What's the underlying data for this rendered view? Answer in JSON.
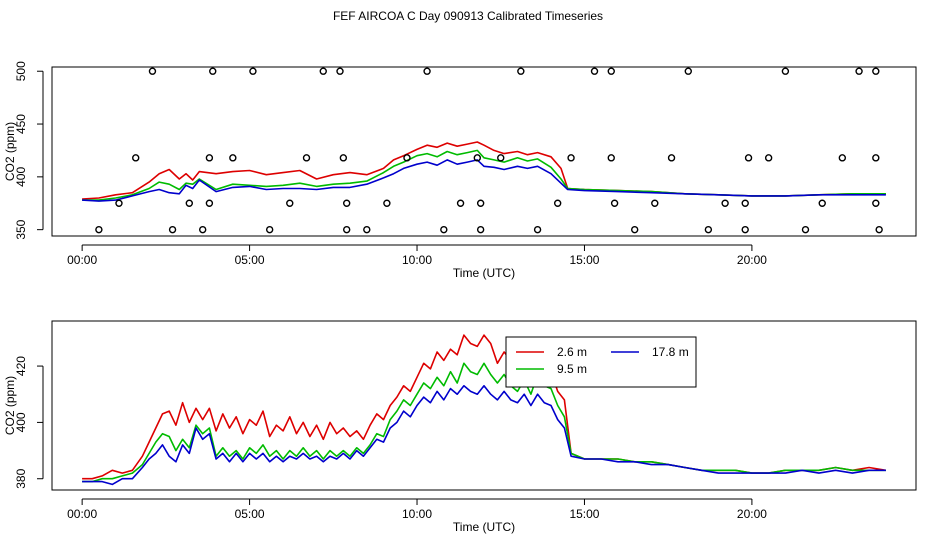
{
  "title": "FEF AIRCOA C  Day 090913  Calibrated Timeseries",
  "colors": {
    "red": "#dd0000",
    "green": "#00bb00",
    "blue": "#0000cc",
    "axis": "#000000"
  },
  "chart_data": [
    {
      "type": "line",
      "title": "",
      "xlabel": "Time (UTC)",
      "ylabel": "CO2 (ppm)",
      "xlim": [
        -0.9,
        24.9
      ],
      "ylim": [
        344,
        504
      ],
      "xticks": [
        0,
        5,
        10,
        15,
        20
      ],
      "xtick_labels": [
        "00:00",
        "05:00",
        "10:00",
        "15:00",
        "20:00"
      ],
      "yticks": [
        350,
        400,
        450,
        500
      ],
      "ytick_labels": [
        "350",
        "400",
        "450",
        "500"
      ],
      "series": [
        {
          "name": "2.6 m",
          "color": "#dd0000",
          "x": [
            0,
            0.5,
            1,
            1.5,
            2,
            2.3,
            2.6,
            2.9,
            3.1,
            3.3,
            3.5,
            4,
            4.5,
            5,
            5.5,
            6,
            6.5,
            7,
            7.5,
            8,
            8.5,
            9,
            9.3,
            9.6,
            10,
            10.3,
            10.6,
            10.9,
            11.2,
            11.5,
            11.8,
            12,
            12.3,
            12.6,
            13,
            13.3,
            13.6,
            14,
            14.3,
            14.5,
            15,
            16,
            17,
            18,
            19,
            20,
            21,
            22,
            23,
            24
          ],
          "y": [
            379,
            380,
            383,
            385,
            395,
            403,
            407,
            398,
            403,
            397,
            405,
            403,
            405,
            406,
            402,
            404,
            406,
            398,
            402,
            404,
            402,
            408,
            416,
            420,
            426,
            430,
            428,
            432,
            429,
            431,
            433,
            430,
            425,
            422,
            424,
            421,
            423,
            419,
            408,
            389,
            388,
            387,
            386,
            384,
            383,
            382,
            382,
            383,
            384,
            384
          ]
        },
        {
          "name": "9.5 m",
          "color": "#00bb00",
          "x": [
            0,
            0.5,
            1,
            1.5,
            2,
            2.3,
            2.6,
            2.9,
            3.1,
            3.3,
            3.5,
            4,
            4.5,
            5,
            5.5,
            6,
            6.5,
            7,
            7.5,
            8,
            8.5,
            9,
            9.3,
            9.6,
            10,
            10.3,
            10.6,
            10.9,
            11.2,
            11.5,
            11.8,
            12,
            12.3,
            12.6,
            13,
            13.3,
            13.6,
            14,
            14.3,
            14.5,
            15,
            16,
            17,
            18,
            19,
            20,
            21,
            22,
            23,
            24
          ],
          "y": [
            378,
            378,
            380,
            383,
            389,
            395,
            393,
            388,
            394,
            393,
            398,
            388,
            393,
            392,
            391,
            392,
            394,
            391,
            393,
            394,
            396,
            404,
            410,
            414,
            420,
            422,
            419,
            424,
            421,
            423,
            425,
            418,
            416,
            414,
            418,
            415,
            417,
            409,
            398,
            389,
            388,
            387,
            386,
            384,
            383,
            382,
            382,
            383,
            384,
            384
          ]
        },
        {
          "name": "17.8 m",
          "color": "#0000cc",
          "x": [
            0,
            0.5,
            1,
            1.5,
            2,
            2.3,
            2.6,
            2.9,
            3.1,
            3.3,
            3.5,
            4,
            4.5,
            5,
            5.5,
            6,
            6.5,
            7,
            7.5,
            8,
            8.5,
            9,
            9.3,
            9.6,
            10,
            10.3,
            10.6,
            10.9,
            11.2,
            11.5,
            11.8,
            12,
            12.3,
            12.6,
            13,
            13.3,
            13.6,
            14,
            14.3,
            14.5,
            15,
            16,
            17,
            18,
            19,
            20,
            21,
            22,
            23,
            24
          ],
          "y": [
            378,
            377,
            378,
            382,
            386,
            388,
            385,
            384,
            392,
            389,
            397,
            386,
            390,
            391,
            388,
            389,
            389,
            388,
            390,
            390,
            393,
            399,
            403,
            408,
            412,
            414,
            411,
            416,
            412,
            414,
            416,
            410,
            409,
            407,
            410,
            408,
            410,
            403,
            394,
            388,
            387,
            386,
            385,
            384,
            383,
            382,
            382,
            383,
            383,
            383
          ]
        }
      ],
      "points": {
        "x": [
          0.5,
          1.1,
          1.6,
          2.1,
          2.7,
          3.2,
          3.6,
          3.8,
          3.8,
          3.9,
          4.5,
          5.1,
          5.6,
          6.2,
          6.7,
          7.2,
          7.7,
          7.8,
          7.9,
          7.9,
          8.5,
          9.1,
          9.7,
          10.3,
          10.8,
          11.3,
          11.8,
          11.9,
          11.9,
          12.5,
          13.1,
          13.6,
          14.2,
          14.6,
          15.3,
          15.8,
          15.8,
          15.9,
          16.5,
          17.1,
          17.6,
          18.1,
          18.7,
          19.2,
          19.8,
          19.8,
          19.9,
          20.5,
          21.0,
          21.6,
          22.1,
          22.7,
          23.2,
          23.7,
          23.7,
          23.7,
          23.8
        ],
        "y": [
          350,
          375,
          418,
          500,
          350,
          375,
          350,
          375,
          418,
          500,
          418,
          500,
          350,
          375,
          418,
          500,
          500,
          418,
          375,
          350,
          350,
          375,
          418,
          500,
          350,
          375,
          418,
          375,
          350,
          418,
          500,
          350,
          375,
          418,
          500,
          500,
          418,
          375,
          350,
          375,
          418,
          500,
          350,
          375,
          375,
          350,
          418,
          418,
          500,
          350,
          375,
          418,
          500,
          500,
          418,
          375,
          350
        ]
      }
    },
    {
      "type": "line",
      "title": "",
      "xlabel": "Time (UTC)",
      "ylabel": "CO2 (ppm)",
      "xlim": [
        -0.9,
        24.9
      ],
      "ylim": [
        376,
        436
      ],
      "xticks": [
        0,
        5,
        10,
        15,
        20
      ],
      "xtick_labels": [
        "00:00",
        "05:00",
        "10:00",
        "15:00",
        "20:00"
      ],
      "yticks": [
        380,
        400,
        420
      ],
      "ytick_labels": [
        "380",
        "400",
        "420"
      ],
      "legend": {
        "placement": "top-center",
        "entries": [
          "2.6 m",
          "9.5 m",
          "17.8 m"
        ]
      },
      "series": [
        {
          "name": "2.6 m",
          "color": "#dd0000",
          "x": [
            0,
            0.3,
            0.6,
            0.9,
            1.2,
            1.5,
            1.8,
            2.0,
            2.2,
            2.4,
            2.6,
            2.8,
            3.0,
            3.2,
            3.4,
            3.6,
            3.8,
            4.0,
            4.2,
            4.4,
            4.6,
            4.8,
            5.0,
            5.2,
            5.4,
            5.6,
            5.8,
            6.0,
            6.2,
            6.4,
            6.6,
            6.8,
            7.0,
            7.2,
            7.4,
            7.6,
            7.8,
            8.0,
            8.2,
            8.4,
            8.6,
            8.8,
            9.0,
            9.2,
            9.4,
            9.6,
            9.8,
            10.0,
            10.2,
            10.4,
            10.6,
            10.8,
            11.0,
            11.2,
            11.4,
            11.6,
            11.8,
            12.0,
            12.2,
            12.4,
            12.6,
            12.8,
            13.0,
            13.2,
            13.4,
            13.6,
            13.8,
            14.0,
            14.2,
            14.4,
            14.6,
            15.0,
            15.5,
            16,
            16.5,
            17,
            17.5,
            18,
            18.5,
            19,
            19.5,
            20,
            20.5,
            21,
            21.5,
            22,
            22.5,
            23,
            23.5,
            24
          ],
          "y": [
            380,
            380,
            381,
            383,
            382,
            383,
            388,
            393,
            398,
            403,
            404,
            399,
            407,
            400,
            405,
            401,
            405,
            397,
            403,
            398,
            402,
            396,
            401,
            399,
            404,
            395,
            399,
            397,
            402,
            396,
            400,
            395,
            399,
            394,
            400,
            396,
            398,
            395,
            397,
            394,
            399,
            403,
            401,
            406,
            409,
            413,
            411,
            416,
            421,
            419,
            425,
            422,
            426,
            424,
            431,
            428,
            427,
            431,
            428,
            421,
            425,
            422,
            419,
            423,
            420,
            421,
            419,
            418,
            411,
            408,
            389,
            387,
            387,
            387,
            386,
            386,
            385,
            384,
            383,
            383,
            383,
            382,
            382,
            383,
            383,
            383,
            384,
            383,
            384,
            383
          ]
        },
        {
          "name": "9.5 m",
          "color": "#00bb00",
          "x": [
            0,
            0.3,
            0.6,
            0.9,
            1.2,
            1.5,
            1.8,
            2.0,
            2.2,
            2.4,
            2.6,
            2.8,
            3.0,
            3.2,
            3.4,
            3.6,
            3.8,
            4.0,
            4.2,
            4.4,
            4.6,
            4.8,
            5.0,
            5.2,
            5.4,
            5.6,
            5.8,
            6.0,
            6.2,
            6.4,
            6.6,
            6.8,
            7.0,
            7.2,
            7.4,
            7.6,
            7.8,
            8.0,
            8.2,
            8.4,
            8.6,
            8.8,
            9.0,
            9.2,
            9.4,
            9.6,
            9.8,
            10.0,
            10.2,
            10.4,
            10.6,
            10.8,
            11.0,
            11.2,
            11.4,
            11.6,
            11.8,
            12.0,
            12.2,
            12.4,
            12.6,
            12.8,
            13.0,
            13.2,
            13.4,
            13.6,
            13.8,
            14.0,
            14.2,
            14.4,
            14.6,
            15.0,
            15.5,
            16,
            16.5,
            17,
            17.5,
            18,
            18.5,
            19,
            19.5,
            20,
            20.5,
            21,
            21.5,
            22,
            22.5,
            23,
            23.5,
            24
          ],
          "y": [
            379,
            379,
            380,
            380,
            381,
            382,
            385,
            389,
            393,
            396,
            395,
            390,
            394,
            391,
            399,
            396,
            398,
            388,
            391,
            388,
            390,
            387,
            391,
            389,
            392,
            388,
            390,
            387,
            390,
            388,
            391,
            388,
            390,
            387,
            390,
            388,
            390,
            388,
            391,
            389,
            392,
            396,
            395,
            401,
            404,
            408,
            406,
            410,
            414,
            412,
            416,
            413,
            418,
            414,
            421,
            418,
            417,
            421,
            417,
            414,
            417,
            413,
            411,
            415,
            410,
            417,
            413,
            412,
            406,
            402,
            389,
            387,
            387,
            387,
            386,
            386,
            385,
            384,
            383,
            383,
            383,
            382,
            382,
            383,
            383,
            383,
            384,
            383,
            383,
            383
          ]
        },
        {
          "name": "17.8 m",
          "color": "#0000cc",
          "x": [
            0,
            0.3,
            0.6,
            0.9,
            1.2,
            1.5,
            1.8,
            2.0,
            2.2,
            2.4,
            2.6,
            2.8,
            3.0,
            3.2,
            3.4,
            3.6,
            3.8,
            4.0,
            4.2,
            4.4,
            4.6,
            4.8,
            5.0,
            5.2,
            5.4,
            5.6,
            5.8,
            6.0,
            6.2,
            6.4,
            6.6,
            6.8,
            7.0,
            7.2,
            7.4,
            7.6,
            7.8,
            8.0,
            8.2,
            8.4,
            8.6,
            8.8,
            9.0,
            9.2,
            9.4,
            9.6,
            9.8,
            10.0,
            10.2,
            10.4,
            10.6,
            10.8,
            11.0,
            11.2,
            11.4,
            11.6,
            11.8,
            12.0,
            12.2,
            12.4,
            12.6,
            12.8,
            13.0,
            13.2,
            13.4,
            13.6,
            13.8,
            14.0,
            14.2,
            14.4,
            14.6,
            15.0,
            15.5,
            16,
            16.5,
            17,
            17.5,
            18,
            18.5,
            19,
            19.5,
            20,
            20.5,
            21,
            21.5,
            22,
            22.5,
            23,
            23.5,
            24
          ],
          "y": [
            379,
            379,
            379,
            378,
            380,
            380,
            384,
            387,
            389,
            392,
            388,
            386,
            392,
            389,
            398,
            394,
            396,
            387,
            389,
            386,
            389,
            386,
            389,
            387,
            389,
            386,
            388,
            386,
            388,
            387,
            389,
            387,
            388,
            386,
            388,
            387,
            389,
            387,
            390,
            388,
            391,
            394,
            393,
            398,
            400,
            404,
            402,
            406,
            409,
            407,
            411,
            408,
            412,
            410,
            413,
            411,
            410,
            413,
            410,
            408,
            411,
            408,
            407,
            410,
            406,
            410,
            407,
            406,
            401,
            398,
            388,
            387,
            387,
            386,
            386,
            385,
            385,
            384,
            383,
            382,
            382,
            382,
            382,
            382,
            383,
            382,
            383,
            382,
            383,
            383
          ]
        }
      ]
    }
  ]
}
